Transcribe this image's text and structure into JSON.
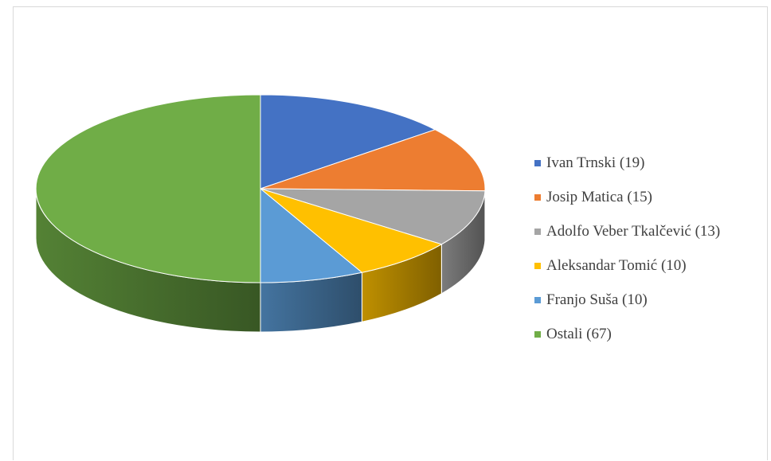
{
  "chart_data": {
    "type": "pie",
    "style": "3d",
    "legend_position": "right",
    "slices": [
      {
        "label": "Ivan Trnski (19)",
        "value": 19,
        "color": "#4472C4"
      },
      {
        "label": "Josip Matica (15)",
        "value": 15,
        "color": "#ED7D31"
      },
      {
        "label": "Adolfo Veber Tkalčević (13)",
        "value": 13,
        "color": "#A5A5A5"
      },
      {
        "label": "Aleksandar Tomić (10)",
        "value": 10,
        "color": "#FFC000"
      },
      {
        "label": "Franjo Suša (10)",
        "value": 10,
        "color": "#5B9BD5"
      },
      {
        "label": "Ostali (67)",
        "value": 67,
        "color": "#70AD47"
      }
    ]
  }
}
